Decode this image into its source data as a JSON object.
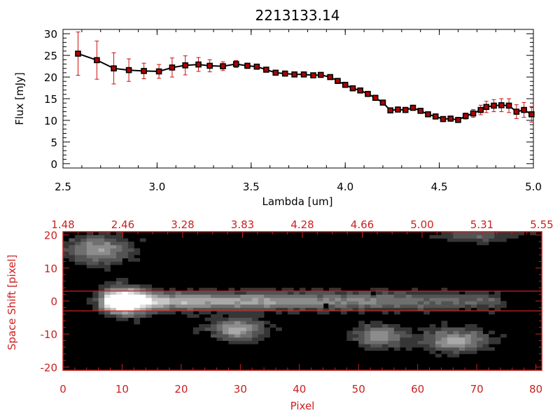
{
  "title": "2213133.14",
  "spectrum": {
    "type": "line",
    "xlabel": "Lambda [um]",
    "ylabel": "Flux [mJy]",
    "xlim": [
      2.5,
      5.0
    ],
    "ylim": [
      -1,
      31
    ],
    "xticks": [
      "2.5",
      "3.0",
      "3.5",
      "4.0",
      "4.5",
      "5.0"
    ],
    "yticks": [
      "0",
      "5",
      "10",
      "15",
      "20",
      "25",
      "30"
    ],
    "line_color": "#000000",
    "marker_color": "#000000",
    "marker_fill": "#b00000",
    "errorbar_color": "#cc1010"
  },
  "chart_data": {
    "type": "line",
    "title": "2213133.14",
    "xlabel": "Lambda [um]",
    "ylabel": "Flux [mJy]",
    "xlim": [
      2.5,
      5.0
    ],
    "ylim": [
      -1,
      31
    ],
    "series": [
      {
        "x": [
          2.58,
          2.68,
          2.77,
          2.85,
          2.93,
          3.01,
          3.08,
          3.15,
          3.22,
          3.28,
          3.35,
          3.42,
          3.48,
          3.53,
          3.58,
          3.63,
          3.68,
          3.73,
          3.78,
          3.83,
          3.87,
          3.92,
          3.96,
          4.0,
          4.04,
          4.08,
          4.12,
          4.16,
          4.2,
          4.24,
          4.28,
          4.32,
          4.36,
          4.4,
          4.44,
          4.48,
          4.52,
          4.56,
          4.6,
          4.64,
          4.68,
          4.72,
          4.75,
          4.79,
          4.83,
          4.87,
          4.91,
          4.95,
          4.99
        ],
        "y": [
          25.4,
          23.9,
          22.0,
          21.6,
          21.4,
          21.3,
          22.2,
          22.7,
          22.9,
          22.6,
          22.5,
          23.0,
          22.6,
          22.4,
          21.7,
          21.0,
          20.8,
          20.6,
          20.6,
          20.4,
          20.5,
          20.0,
          19.1,
          18.2,
          17.4,
          16.9,
          16.1,
          15.2,
          14.1,
          12.3,
          12.5,
          12.4,
          12.9,
          12.2,
          11.4,
          10.9,
          10.3,
          10.4,
          10.1,
          11.0,
          11.6,
          12.4,
          13.1,
          13.4,
          13.5,
          13.4,
          12.0,
          12.4,
          11.4
        ],
        "yerr": [
          5.0,
          4.4,
          3.6,
          2.6,
          1.8,
          1.6,
          2.2,
          2.2,
          1.6,
          1.4,
          1.0,
          0.8,
          0.6,
          0.6,
          0.5,
          0.5,
          0.5,
          0.4,
          0.4,
          0.4,
          0.4,
          0.4,
          0.4,
          0.5,
          0.5,
          0.5,
          0.5,
          0.5,
          0.5,
          0.6,
          0.6,
          0.6,
          0.6,
          0.6,
          0.6,
          0.6,
          0.6,
          0.6,
          0.6,
          0.7,
          0.9,
          1.1,
          1.3,
          1.4,
          1.5,
          1.6,
          1.6,
          1.7,
          1.8
        ]
      }
    ]
  },
  "image2d": {
    "type": "heatmap",
    "xlabel": "Pixel",
    "ylabel": "Space Shift [pixel]",
    "xlim": [
      0,
      81
    ],
    "ylim": [
      -21,
      21
    ],
    "xticks": [
      "0",
      "10",
      "20",
      "30",
      "40",
      "50",
      "60",
      "70",
      "80"
    ],
    "yticks": [
      "-20",
      "-10",
      "0",
      "10",
      "20"
    ],
    "top_axis_labels": [
      "1.48",
      "2.46",
      "3.28",
      "3.83",
      "4.28",
      "4.66",
      "5.00",
      "5.31",
      "5.55"
    ],
    "extraction_lines": [
      3,
      -3
    ],
    "axis_color": "#cc1f1f",
    "background_color": "#000000",
    "blobs": [
      {
        "x": 10.5,
        "y": 0.0,
        "sx": 2.6,
        "sy": 2.8,
        "amp": 1.0
      },
      {
        "x": 6.0,
        "y": 15.5,
        "sx": 3.5,
        "sy": 2.8,
        "amp": 0.55
      },
      {
        "x": 29.5,
        "y": -8.5,
        "sx": 3.0,
        "sy": 2.3,
        "amp": 0.6
      },
      {
        "x": 53.5,
        "y": -10.5,
        "sx": 2.8,
        "sy": 2.2,
        "amp": 0.55
      },
      {
        "x": 66.5,
        "y": -11.8,
        "sx": 3.6,
        "sy": 2.3,
        "amp": 0.6
      },
      {
        "x": 70.5,
        "y": 20.0,
        "sx": 4.5,
        "sy": 1.5,
        "amp": 0.3
      }
    ],
    "trace": {
      "start": 8,
      "end": 73,
      "y": 0.0,
      "width": 2.6,
      "amp_start": 0.75,
      "amp_end": 0.28
    },
    "dark_pixels": [
      {
        "x": 44.5,
        "y": -1.5
      },
      {
        "x": 52.5,
        "y": 2.5
      }
    ]
  }
}
